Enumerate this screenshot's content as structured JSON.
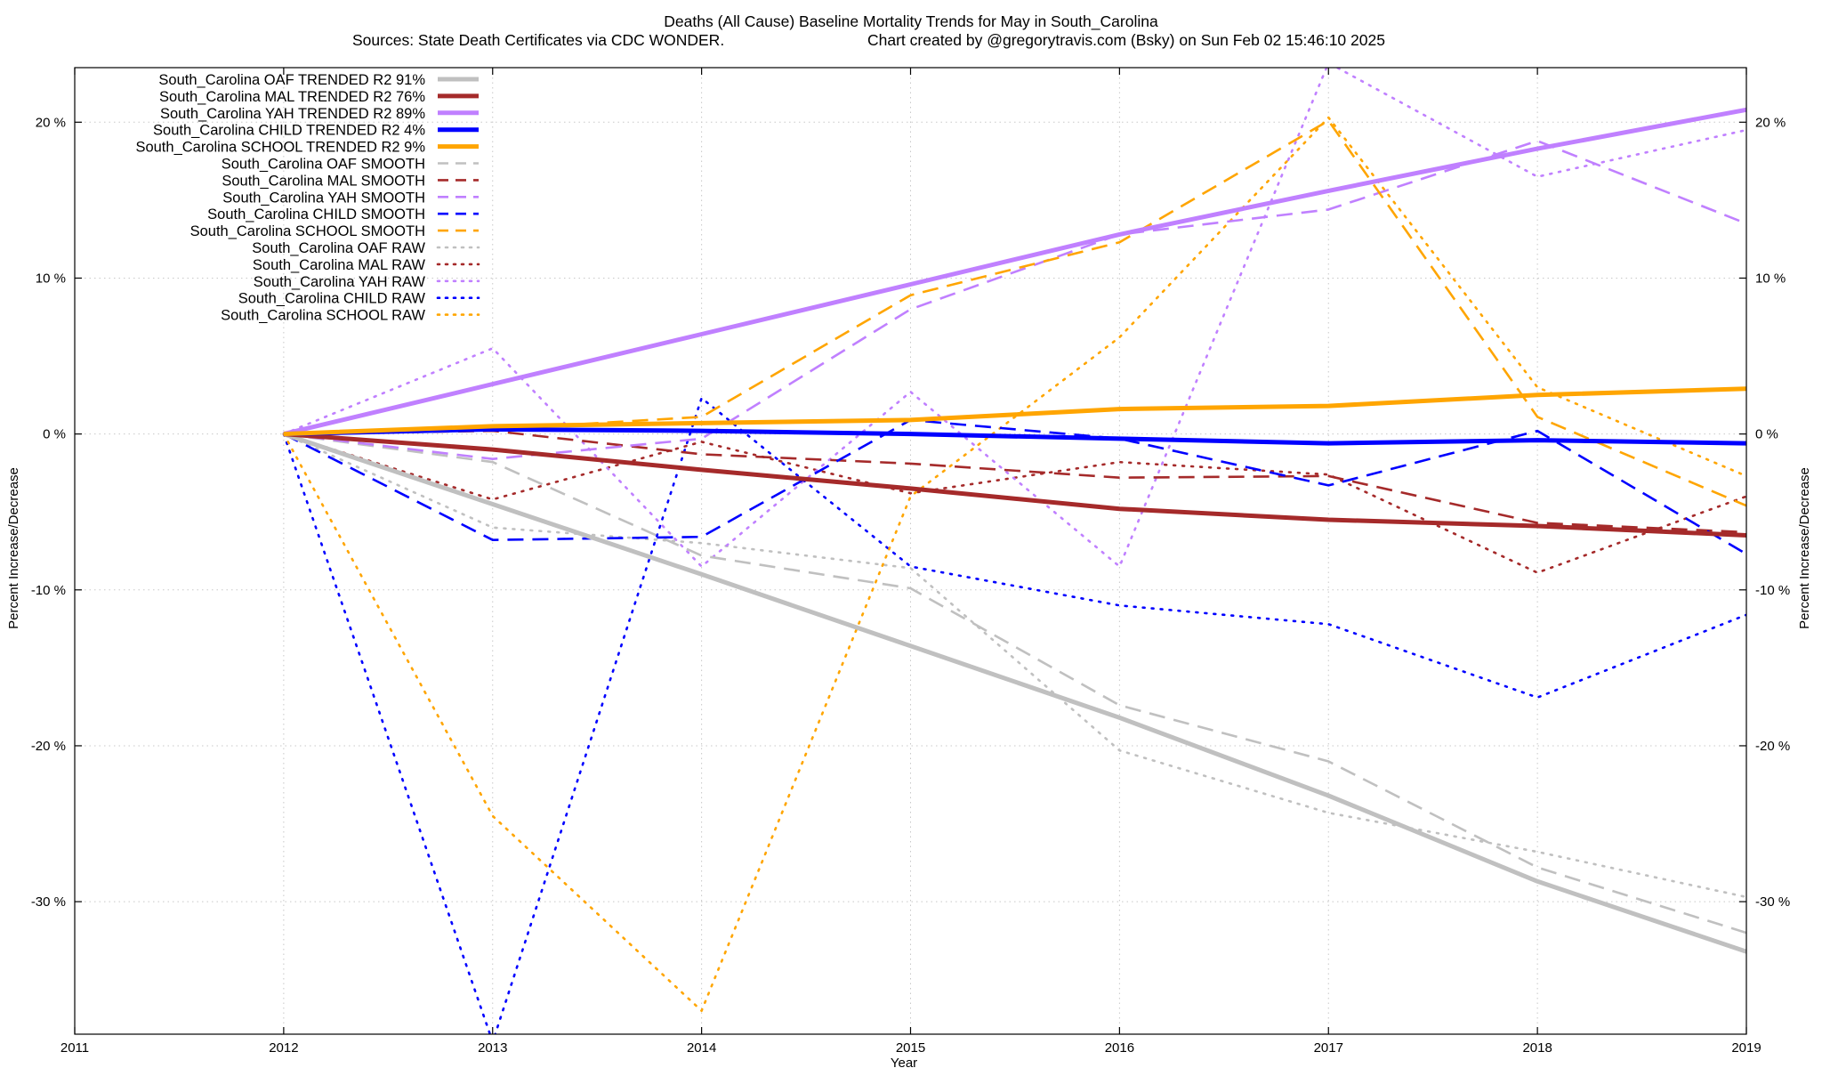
{
  "chart_data": {
    "type": "line",
    "title": "Deaths (All Cause)  Baseline Mortality Trends for May in South_Carolina",
    "subtitle_sources": "Sources: State Death Certificates via CDC WONDER.",
    "subtitle_credit": "Chart created by @gregorytravis.com (Bsky) on Sun Feb 02 15:46:10 2025",
    "xlabel": "Year",
    "ylabel": "Percent Increase/Decrease",
    "y2label": "Percent Increase/Decrease",
    "xlim": [
      2011,
      2019
    ],
    "ylim": [
      -38.5,
      23.5
    ],
    "x_ticks": [
      2011,
      2012,
      2013,
      2014,
      2015,
      2016,
      2017,
      2018,
      2019
    ],
    "x_tick_labels": [
      "2011",
      "2012",
      "2013",
      "2014",
      "2015",
      "2016",
      "2017",
      "2018",
      "2019"
    ],
    "y_ticks": [
      20,
      10,
      0,
      -10,
      -20,
      -30
    ],
    "y_tick_labels": [
      "20 %",
      "10 %",
      "0 %",
      "-10 %",
      "-20 %",
      "-30 %"
    ],
    "grid": true,
    "legend_position": "top-left",
    "x": [
      2012,
      2013,
      2014,
      2015,
      2016,
      2017,
      2018,
      2019
    ],
    "series": [
      {
        "name": "South_Carolina OAF TRENDED R2  91%",
        "color": "#c0c0c0",
        "style": "solid",
        "width": 5,
        "values": [
          0,
          -4.5,
          -9,
          -13.6,
          -18.2,
          -23.2,
          -28.7,
          -33.2
        ]
      },
      {
        "name": "South_Carolina MAL TRENDED R2  76%",
        "color": "#a52a2a",
        "style": "solid",
        "width": 5,
        "values": [
          0,
          -1.0,
          -2.3,
          -3.5,
          -4.8,
          -5.5,
          -5.9,
          -6.5
        ]
      },
      {
        "name": "South_Carolina YAH TRENDED R2  89%",
        "color": "#c080ff",
        "style": "solid",
        "width": 5,
        "values": [
          0,
          3.2,
          6.4,
          9.6,
          12.8,
          15.6,
          18.3,
          20.8
        ]
      },
      {
        "name": "South_Carolina CHILD TRENDED R2   4%",
        "color": "#0000ff",
        "style": "solid",
        "width": 5,
        "values": [
          0,
          0.3,
          0.2,
          0.0,
          -0.3,
          -0.6,
          -0.4,
          -0.6
        ]
      },
      {
        "name": "South_Carolina SCHOOL TRENDED R2   9%",
        "color": "#ffa500",
        "style": "solid",
        "width": 5,
        "values": [
          0,
          0.5,
          0.7,
          0.9,
          1.6,
          1.8,
          2.5,
          2.9
        ]
      },
      {
        "name": "South_Carolina OAF SMOOTH",
        "color": "#c0c0c0",
        "style": "dashed",
        "width": 2.6,
        "values": [
          0,
          -1.8,
          -7.8,
          -9.9,
          -17.4,
          -21.0,
          -27.8,
          -32.0
        ]
      },
      {
        "name": "South_Carolina MAL SMOOTH",
        "color": "#a52a2a",
        "style": "dashed",
        "width": 2.6,
        "values": [
          0,
          0.2,
          -1.3,
          -1.9,
          -2.8,
          -2.7,
          -5.7,
          -6.3
        ]
      },
      {
        "name": "South_Carolina YAH SMOOTH",
        "color": "#c080ff",
        "style": "dashed",
        "width": 2.6,
        "values": [
          0,
          -1.6,
          -0.3,
          8.0,
          12.8,
          14.4,
          18.8,
          13.5
        ]
      },
      {
        "name": "South_Carolina CHILD SMOOTH",
        "color": "#0000ff",
        "style": "dashed",
        "width": 2.6,
        "values": [
          0,
          -6.8,
          -6.6,
          0.9,
          -0.3,
          -3.3,
          0.2,
          -7.7
        ]
      },
      {
        "name": "South_Carolina SCHOOL SMOOTH",
        "color": "#ffa500",
        "style": "dashed",
        "width": 2.6,
        "values": [
          0,
          0.3,
          1.1,
          8.9,
          12.3,
          20.1,
          1.1,
          -4.6
        ]
      },
      {
        "name": "South_Carolina OAF RAW",
        "color": "#c0c0c0",
        "style": "dotted",
        "width": 2.6,
        "values": [
          0,
          -6.0,
          -7.0,
          -8.6,
          -20.3,
          -24.3,
          -26.8,
          -29.7
        ]
      },
      {
        "name": "South_Carolina MAL RAW",
        "color": "#a52a2a",
        "style": "dotted",
        "width": 2.6,
        "values": [
          0,
          -4.2,
          -0.5,
          -3.8,
          -1.8,
          -2.6,
          -8.9,
          -4.0
        ]
      },
      {
        "name": "South_Carolina YAH RAW",
        "color": "#c080ff",
        "style": "dotted",
        "width": 2.6,
        "values": [
          0,
          5.5,
          -8.5,
          2.7,
          -8.5,
          23.8,
          16.5,
          19.5
        ]
      },
      {
        "name": "South_Carolina CHILD RAW",
        "color": "#0000ff",
        "style": "dotted",
        "width": 2.6,
        "values": [
          0,
          -39.0,
          2.3,
          -8.5,
          -11.0,
          -12.2,
          -16.9,
          -11.6
        ]
      },
      {
        "name": "South_Carolina SCHOOL RAW",
        "color": "#ffa500",
        "style": "dotted",
        "width": 2.6,
        "values": [
          0,
          -24.5,
          -37.0,
          -4.0,
          6.2,
          20.3,
          3.0,
          -2.7
        ]
      }
    ]
  }
}
